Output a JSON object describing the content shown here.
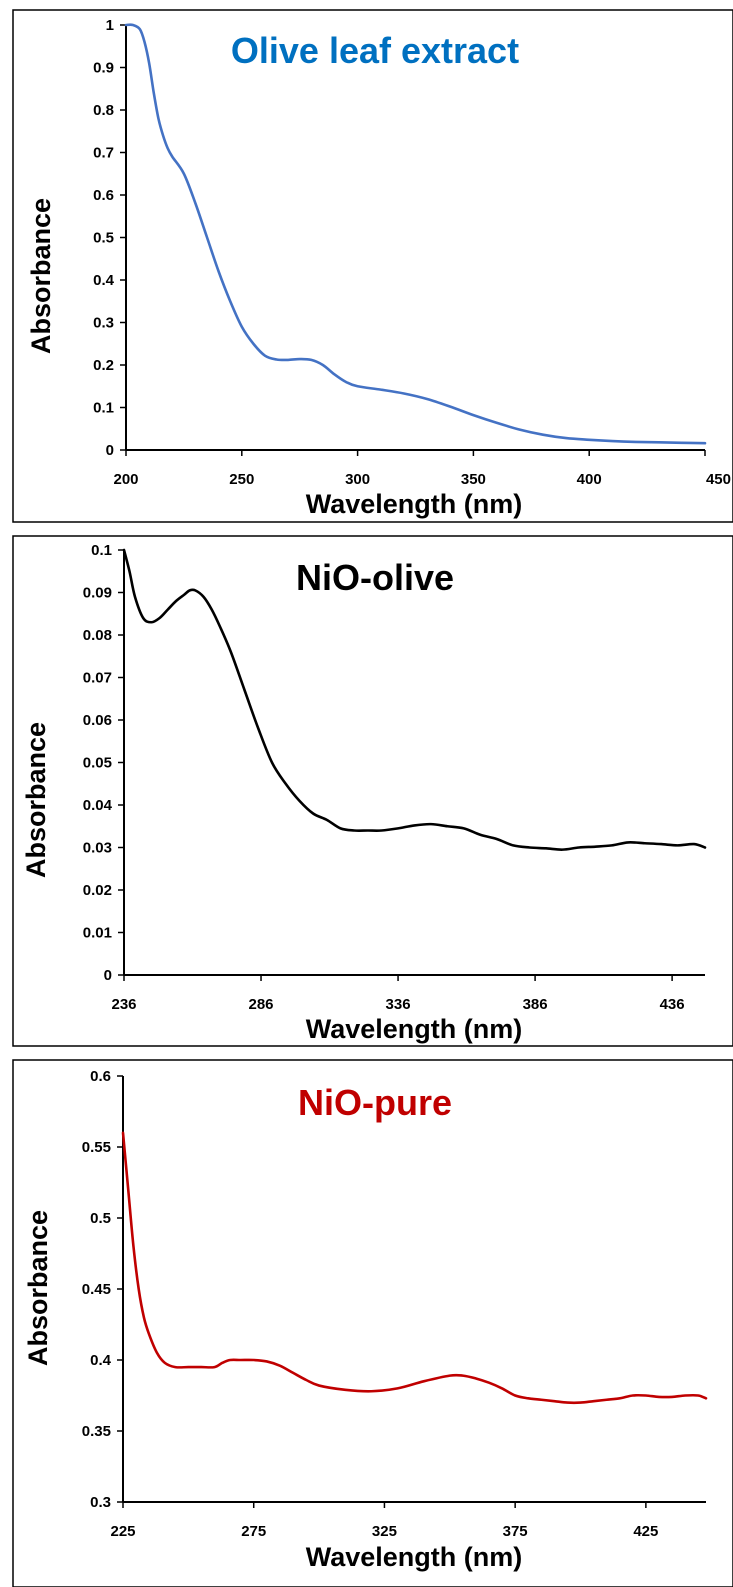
{
  "chart_data": [
    {
      "type": "line",
      "title": "Olive leaf extract",
      "title_color": "#0070C0",
      "xlabel": "Wavelength (nm)",
      "ylabel": "Absorbance",
      "xlim": [
        200,
        450
      ],
      "ylim": [
        0,
        1
      ],
      "x_ticks": [
        200,
        250,
        300,
        350,
        400,
        450
      ],
      "x_tick_labels": [
        "200",
        "250",
        "300",
        "350",
        "400",
        "450"
      ],
      "y_ticks": [
        0,
        0.1,
        0.2,
        0.3,
        0.4,
        0.5,
        0.6,
        0.7,
        0.8,
        0.9,
        1
      ],
      "y_tick_labels": [
        "0",
        "0.1",
        "0.2",
        "0.3",
        "0.4",
        "0.5",
        "0.6",
        "0.7",
        "0.8",
        "0.9",
        "1"
      ],
      "grid": false,
      "series": [
        {
          "color": "#4472C4",
          "x": [
            200,
            203,
            206,
            208,
            210,
            212,
            214,
            216,
            218,
            220,
            225,
            230,
            235,
            240,
            245,
            250,
            255,
            260,
            265,
            270,
            275,
            280,
            285,
            290,
            295,
            300,
            310,
            320,
            330,
            340,
            350,
            360,
            370,
            380,
            390,
            400,
            410,
            420,
            430,
            440,
            450
          ],
          "y": [
            1.0,
            1.0,
            0.99,
            0.96,
            0.91,
            0.84,
            0.78,
            0.74,
            0.71,
            0.69,
            0.65,
            0.58,
            0.5,
            0.42,
            0.35,
            0.29,
            0.25,
            0.222,
            0.213,
            0.212,
            0.214,
            0.212,
            0.2,
            0.178,
            0.16,
            0.15,
            0.142,
            0.133,
            0.12,
            0.102,
            0.082,
            0.064,
            0.048,
            0.036,
            0.028,
            0.024,
            0.021,
            0.019,
            0.018,
            0.017,
            0.016
          ]
        }
      ]
    },
    {
      "type": "line",
      "title": "NiO-olive",
      "title_color": "#000000",
      "xlabel": "Wavelength (nm)",
      "ylabel": "Absorbance",
      "xlim": [
        236,
        448
      ],
      "ylim": [
        0,
        0.1
      ],
      "x_ticks": [
        236,
        286,
        336,
        386,
        436
      ],
      "x_tick_labels": [
        "236",
        "286",
        "336",
        "386",
        "436"
      ],
      "y_ticks": [
        0,
        0.01,
        0.02,
        0.03,
        0.04,
        0.05,
        0.06,
        0.07,
        0.08,
        0.09,
        0.1
      ],
      "y_tick_labels": [
        "0",
        "0.01",
        "0.02",
        "0.03",
        "0.04",
        "0.05",
        "0.06",
        "0.07",
        "0.08",
        "0.09",
        "0.1"
      ],
      "grid": false,
      "series": [
        {
          "color": "#000000",
          "x": [
            236,
            238,
            240,
            243,
            246,
            249,
            252,
            255,
            258,
            260,
            262,
            265,
            268,
            271,
            275,
            280,
            285,
            290,
            295,
            300,
            305,
            310,
            315,
            320,
            325,
            330,
            336,
            342,
            348,
            354,
            360,
            366,
            372,
            378,
            384,
            390,
            396,
            402,
            408,
            414,
            420,
            426,
            432,
            438,
            444,
            448
          ],
          "y": [
            0.1,
            0.095,
            0.089,
            0.084,
            0.083,
            0.084,
            0.086,
            0.088,
            0.0895,
            0.0905,
            0.0905,
            0.089,
            0.086,
            0.082,
            0.076,
            0.067,
            0.058,
            0.05,
            0.045,
            0.041,
            0.038,
            0.0365,
            0.0345,
            0.034,
            0.034,
            0.034,
            0.0345,
            0.0352,
            0.0355,
            0.035,
            0.0345,
            0.033,
            0.032,
            0.0305,
            0.03,
            0.0298,
            0.0295,
            0.03,
            0.0302,
            0.0305,
            0.0312,
            0.031,
            0.0308,
            0.0305,
            0.0308,
            0.03
          ]
        }
      ]
    },
    {
      "type": "line",
      "title": "NiO-pure",
      "title_color": "#C00000",
      "xlabel": "Wavelength (nm)",
      "ylabel": "Absorbance",
      "xlim": [
        225,
        448
      ],
      "ylim": [
        0.3,
        0.6
      ],
      "x_ticks": [
        225,
        275,
        325,
        375,
        425
      ],
      "x_tick_labels": [
        "225",
        "275",
        "325",
        "375",
        "425"
      ],
      "y_ticks": [
        0.3,
        0.35,
        0.4,
        0.45,
        0.5,
        0.55,
        0.6
      ],
      "y_tick_labels": [
        "0.3",
        "0.35",
        "0.4",
        "0.45",
        "0.5",
        "0.55",
        "0.6"
      ],
      "grid": false,
      "series": [
        {
          "color": "#C00000",
          "x": [
            225,
            227,
            229,
            231,
            233,
            235,
            238,
            241,
            245,
            250,
            255,
            260,
            263,
            266,
            270,
            275,
            280,
            285,
            290,
            295,
            300,
            310,
            320,
            330,
            340,
            350,
            355,
            360,
            365,
            370,
            375,
            380,
            385,
            390,
            395,
            400,
            405,
            410,
            415,
            420,
            425,
            430,
            435,
            440,
            445,
            448
          ],
          "y": [
            0.56,
            0.52,
            0.48,
            0.45,
            0.43,
            0.418,
            0.405,
            0.398,
            0.395,
            0.395,
            0.395,
            0.395,
            0.398,
            0.4,
            0.4,
            0.4,
            0.399,
            0.396,
            0.391,
            0.386,
            0.382,
            0.379,
            0.378,
            0.38,
            0.385,
            0.389,
            0.389,
            0.387,
            0.384,
            0.38,
            0.375,
            0.373,
            0.372,
            0.371,
            0.37,
            0.37,
            0.371,
            0.372,
            0.373,
            0.375,
            0.375,
            0.374,
            0.374,
            0.375,
            0.375,
            0.373
          ]
        }
      ]
    }
  ]
}
